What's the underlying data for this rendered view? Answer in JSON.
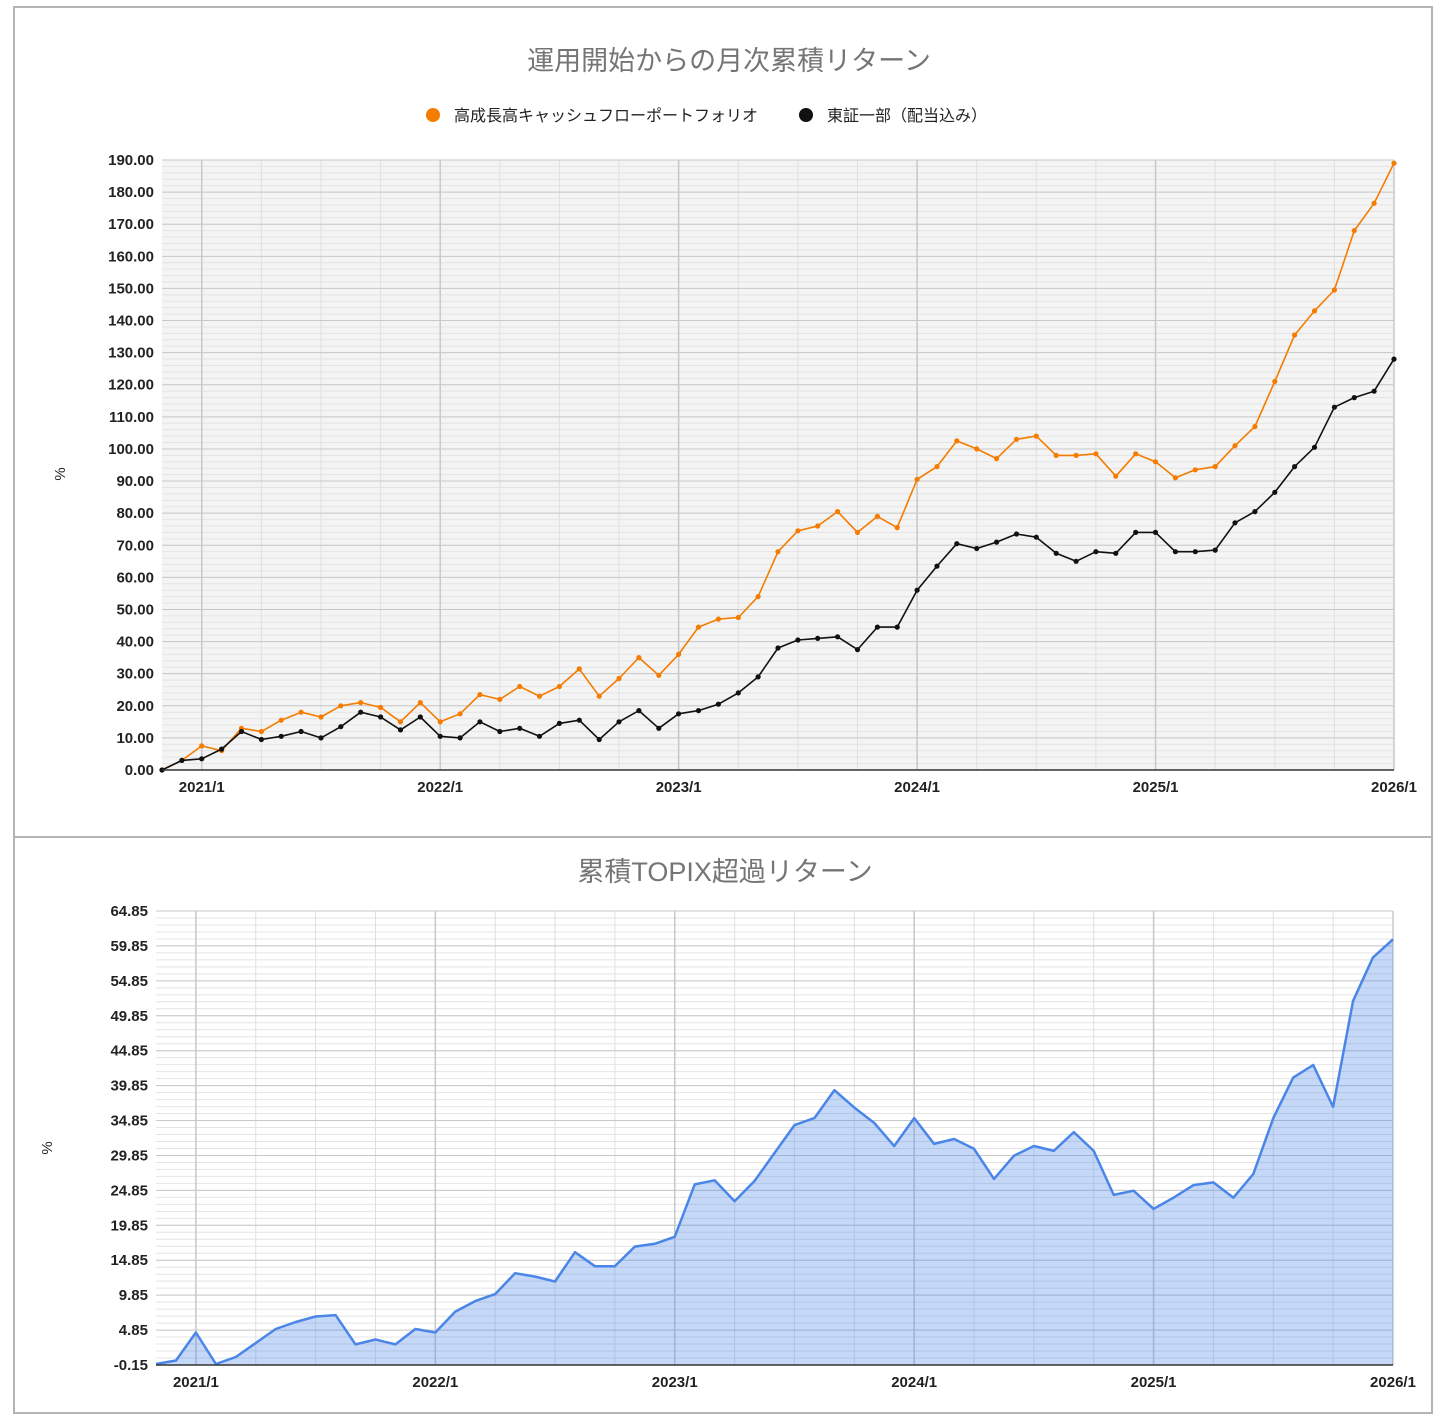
{
  "chart_data": [
    {
      "type": "line",
      "title": "運用開始からの月次累積リターン",
      "ylabel": "%",
      "ylim": [
        0,
        190
      ],
      "yticks": [
        "190.00",
        "180.00",
        "170.00",
        "160.00",
        "150.00",
        "140.00",
        "130.00",
        "120.00",
        "110.00",
        "100.00",
        "90.00",
        "80.00",
        "70.00",
        "60.00",
        "50.00",
        "40.00",
        "30.00",
        "20.00",
        "10.00",
        "0.00"
      ],
      "xticks": [
        "2021/1",
        "2022/1",
        "2023/1",
        "2024/1",
        "2025/1",
        "2026/1"
      ],
      "legend_position": "top",
      "grid": true,
      "series": [
        {
          "name": "高成長高キャッシュフローポートフォリオ",
          "color": "#f57c00",
          "values": [
            0,
            3,
            7.5,
            6,
            13,
            12,
            15.5,
            18,
            16.5,
            20,
            21,
            19.5,
            15,
            21,
            15,
            17.5,
            23.5,
            22,
            26,
            23,
            26,
            31.5,
            23,
            28.5,
            35,
            29.5,
            36,
            44.5,
            47,
            47.5,
            54,
            68,
            74.5,
            76,
            80.5,
            74,
            79,
            75.5,
            90.5,
            94.5,
            102.5,
            100,
            97,
            103,
            104,
            98,
            98,
            98.5,
            91.5,
            98.5,
            96,
            91,
            93.5,
            94.5,
            101,
            107,
            121,
            135.5,
            143,
            149.5,
            168,
            176.5,
            189
          ]
        },
        {
          "name": "東証一部（配当込み）",
          "color": "#111111",
          "values": [
            0,
            3,
            3.5,
            6.5,
            12,
            9.5,
            10.5,
            12,
            10,
            13.5,
            18,
            16.5,
            12.5,
            16.5,
            10.5,
            10,
            15,
            12,
            13,
            10.5,
            14.5,
            15.5,
            9.5,
            15,
            18.5,
            13,
            17.5,
            18.5,
            20.5,
            24,
            29,
            38,
            40.5,
            41,
            41.5,
            37.5,
            44.5,
            44.5,
            56,
            63.5,
            70.5,
            69,
            71,
            73.5,
            72.5,
            67.5,
            65,
            68,
            67.5,
            74,
            74,
            68,
            68,
            68.5,
            77,
            80.5,
            86.5,
            94.5,
            100.5,
            113,
            116,
            118,
            128
          ]
        }
      ]
    },
    {
      "type": "area",
      "title": "累積TOPIX超過リターン",
      "ylabel": "%",
      "ylim": [
        -0.15,
        64.85
      ],
      "yticks": [
        "64.85",
        "59.85",
        "54.85",
        "49.85",
        "44.85",
        "39.85",
        "34.85",
        "29.85",
        "24.85",
        "19.85",
        "14.85",
        "9.85",
        "4.85",
        "-0.15"
      ],
      "xticks": [
        "2021/1",
        "2022/1",
        "2023/1",
        "2024/1",
        "2025/1",
        "2026/1"
      ],
      "grid": true,
      "series": [
        {
          "name": "",
          "color": "#4a86e8",
          "values": [
            0,
            0.5,
            4.5,
            0,
            1,
            3,
            5,
            6,
            6.8,
            7,
            2.8,
            3.5,
            2.8,
            5,
            4.5,
            7.5,
            9,
            10,
            13,
            12.5,
            11.8,
            16,
            14,
            14,
            16.8,
            17.2,
            18.2,
            25.7,
            26.3,
            23.3,
            26.2,
            30.2,
            34.2,
            35.2,
            39.2,
            36.7,
            34.5,
            31.2,
            35.2,
            31.5,
            32.2,
            30.8,
            26.5,
            29.8,
            31.2,
            30.5,
            33.2,
            30.5,
            24.2,
            24.8,
            22.2,
            23.8,
            25.6,
            26,
            23.8,
            27.2,
            35.2,
            41,
            42.8,
            36.8,
            52,
            58.2,
            60.8
          ]
        }
      ]
    }
  ]
}
